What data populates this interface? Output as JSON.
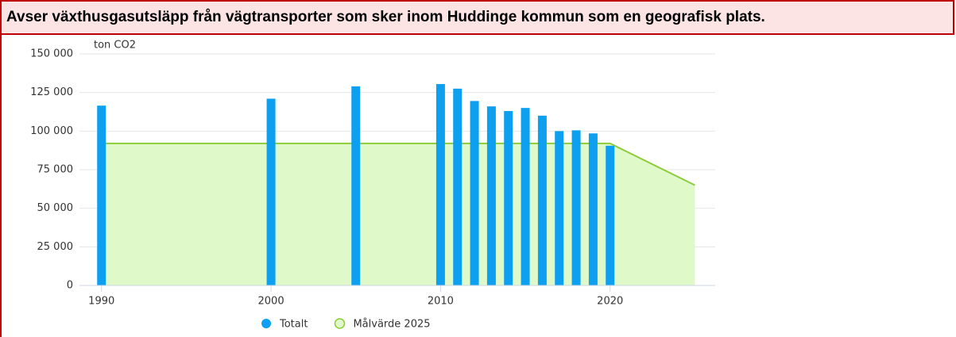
{
  "chart_data": {
    "type": "bar",
    "title": "Avser växthusgasutsläpp från vägtransporter som sker inom Huddinge kommun som en geografisk plats.",
    "ylabel": "ton CO2",
    "series": [
      {
        "name": "Totalt",
        "type": "bar",
        "color": "#0d9ff0",
        "x": [
          1990,
          2000,
          2005,
          2010,
          2011,
          2012,
          2013,
          2014,
          2015,
          2016,
          2017,
          2018,
          2019,
          2020
        ],
        "values": [
          116500,
          121000,
          129000,
          130500,
          127500,
          119500,
          116000,
          113000,
          115000,
          110000,
          100000,
          100500,
          98500,
          90500
        ]
      },
      {
        "name": "Målvärde 2025",
        "type": "area",
        "color": "#8ccc3a",
        "fill": "#dff9c8",
        "x": [
          1990,
          2020,
          2025
        ],
        "values": [
          92000,
          92000,
          65000
        ]
      }
    ],
    "xlim": [
      1988.7,
      2026.2
    ],
    "xticks": [
      1990,
      2000,
      2010,
      2020
    ],
    "ylim": [
      0,
      150000
    ],
    "yticks": [
      0,
      {
        "value": 25000,
        "label": "25 000"
      },
      {
        "value": 50000,
        "label": "50 000"
      },
      {
        "value": 75000,
        "label": "75 000"
      },
      {
        "value": 100000,
        "label": "100 000"
      },
      {
        "value": 125000,
        "label": "125 000"
      },
      {
        "value": 150000,
        "label": "150 000"
      }
    ],
    "grid": true
  }
}
